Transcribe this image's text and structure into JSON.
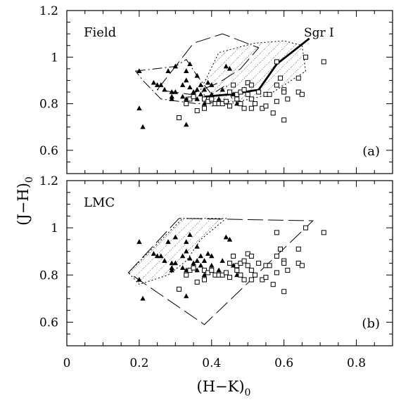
{
  "figure": {
    "ylabel": "(J−H)",
    "ylabel_sub": "0",
    "xlabel": "(H−K)",
    "xlabel_sub": "0"
  },
  "chart_data": [
    {
      "type": "scatter",
      "panel_label": "Field",
      "corner_label": "(a)",
      "xlim": [
        0,
        0.9
      ],
      "ylim": [
        0.5,
        1.2
      ],
      "xticks": [
        "0",
        "0.2",
        "0.4",
        "0.6",
        "0.8"
      ],
      "yticks": [
        "0.6",
        "0.8",
        "1",
        "1.2"
      ],
      "xtick_values": [
        0,
        0.2,
        0.4,
        0.6,
        0.8
      ],
      "ytick_values": [
        0.6,
        0.8,
        1.0,
        1.2
      ],
      "show_xticklabels": false,
      "series": [
        {
          "marker": "filled-triangle",
          "points": [
            [
              0.2,
              0.94
            ],
            [
              0.2,
              0.78
            ],
            [
              0.21,
              0.7
            ],
            [
              0.24,
              0.89
            ],
            [
              0.25,
              0.88
            ],
            [
              0.26,
              0.88
            ],
            [
              0.27,
              0.86
            ],
            [
              0.28,
              0.94
            ],
            [
              0.29,
              0.85
            ],
            [
              0.29,
              0.83
            ],
            [
              0.29,
              0.82
            ],
            [
              0.3,
              0.96
            ],
            [
              0.3,
              0.85
            ],
            [
              0.32,
              0.88
            ],
            [
              0.32,
              0.83
            ],
            [
              0.33,
              0.94
            ],
            [
              0.33,
              0.9
            ],
            [
              0.33,
              0.82
            ],
            [
              0.33,
              0.71
            ],
            [
              0.34,
              0.97
            ],
            [
              0.34,
              0.87
            ],
            [
              0.35,
              0.85
            ],
            [
              0.35,
              0.84
            ],
            [
              0.35,
              0.83
            ],
            [
              0.36,
              0.92
            ],
            [
              0.36,
              0.86
            ],
            [
              0.36,
              0.82
            ],
            [
              0.37,
              0.88
            ],
            [
              0.37,
              0.84
            ],
            [
              0.38,
              0.86
            ],
            [
              0.38,
              0.8
            ],
            [
              0.39,
              0.89
            ],
            [
              0.4,
              0.88
            ],
            [
              0.4,
              0.84
            ],
            [
              0.42,
              0.82
            ],
            [
              0.43,
              0.86
            ],
            [
              0.44,
              0.96
            ],
            [
              0.45,
              0.95
            ],
            [
              0.46,
              0.84
            ],
            [
              0.47,
              0.8
            ]
          ]
        },
        {
          "marker": "open-square",
          "points": [
            [
              0.31,
              0.74
            ],
            [
              0.33,
              0.8
            ],
            [
              0.34,
              0.82
            ],
            [
              0.35,
              0.83
            ],
            [
              0.36,
              0.77
            ],
            [
              0.38,
              0.78
            ],
            [
              0.38,
              0.82
            ],
            [
              0.39,
              0.81
            ],
            [
              0.4,
              0.82
            ],
            [
              0.41,
              0.8
            ],
            [
              0.42,
              0.8
            ],
            [
              0.43,
              0.8
            ],
            [
              0.44,
              0.81
            ],
            [
              0.45,
              0.85
            ],
            [
              0.45,
              0.79
            ],
            [
              0.46,
              0.88
            ],
            [
              0.47,
              0.84
            ],
            [
              0.47,
              0.82
            ],
            [
              0.48,
              0.85
            ],
            [
              0.48,
              0.8
            ],
            [
              0.49,
              0.78
            ],
            [
              0.49,
              0.86
            ],
            [
              0.5,
              0.89
            ],
            [
              0.5,
              0.84
            ],
            [
              0.51,
              0.88
            ],
            [
              0.51,
              0.82
            ],
            [
              0.51,
              0.78
            ],
            [
              0.52,
              0.8
            ],
            [
              0.53,
              0.85
            ],
            [
              0.54,
              0.78
            ],
            [
              0.55,
              0.84
            ],
            [
              0.55,
              0.79
            ],
            [
              0.56,
              0.84
            ],
            [
              0.57,
              0.76
            ],
            [
              0.58,
              0.88
            ],
            [
              0.58,
              0.81
            ],
            [
              0.58,
              0.98
            ],
            [
              0.59,
              0.91
            ],
            [
              0.6,
              0.86
            ],
            [
              0.6,
              0.85
            ],
            [
              0.6,
              0.73
            ],
            [
              0.61,
              0.82
            ],
            [
              0.64,
              0.91
            ],
            [
              0.64,
              0.85
            ],
            [
              0.65,
              0.84
            ],
            [
              0.66,
              1.0
            ],
            [
              0.71,
              0.98
            ]
          ]
        }
      ],
      "track": {
        "label": "Sgr I",
        "points": [
          [
            0.38,
            0.83
          ],
          [
            0.45,
            0.84
          ],
          [
            0.53,
            0.86
          ],
          [
            0.58,
            0.97
          ],
          [
            0.67,
            1.08
          ]
        ]
      },
      "regions": [
        {
          "style": "dash-dot",
          "points": [
            [
              0.19,
              0.94
            ],
            [
              0.3,
              0.96
            ],
            [
              0.33,
              0.99
            ],
            [
              0.36,
              0.92
            ],
            [
              0.4,
              0.84
            ],
            [
              0.44,
              0.88
            ],
            [
              0.46,
              0.81
            ],
            [
              0.36,
              0.8
            ],
            [
              0.26,
              0.82
            ],
            [
              0.21,
              0.9
            ],
            [
              0.19,
              0.94
            ]
          ]
        },
        {
          "style": "long-dash",
          "points": [
            [
              0.25,
              0.86
            ],
            [
              0.35,
              1.06
            ],
            [
              0.43,
              1.1
            ],
            [
              0.53,
              1.04
            ],
            [
              0.48,
              0.95
            ],
            [
              0.42,
              0.89
            ],
            [
              0.34,
              0.84
            ],
            [
              0.25,
              0.86
            ]
          ]
        },
        {
          "style": "dotted-hatched",
          "points": [
            [
              0.37,
              0.86
            ],
            [
              0.42,
              1.02
            ],
            [
              0.52,
              1.06
            ],
            [
              0.6,
              1.07
            ],
            [
              0.65,
              1.05
            ],
            [
              0.66,
              0.94
            ],
            [
              0.56,
              0.84
            ],
            [
              0.45,
              0.8
            ],
            [
              0.4,
              0.79
            ],
            [
              0.37,
              0.86
            ]
          ]
        }
      ]
    },
    {
      "type": "scatter",
      "panel_label": "LMC",
      "corner_label": "(b)",
      "xlim": [
        0,
        0.9
      ],
      "ylim": [
        0.5,
        1.2
      ],
      "xticks": [
        "0",
        "0.2",
        "0.4",
        "0.6",
        "0.8"
      ],
      "yticks": [
        "0.6",
        "0.8",
        "1",
        "1.2"
      ],
      "xtick_values": [
        0,
        0.2,
        0.4,
        0.6,
        0.8
      ],
      "ytick_values": [
        0.6,
        0.8,
        1.0,
        1.2
      ],
      "show_xticklabels": true,
      "series": [
        {
          "marker": "filled-triangle",
          "points": [
            [
              0.2,
              0.94
            ],
            [
              0.2,
              0.78
            ],
            [
              0.21,
              0.7
            ],
            [
              0.24,
              0.89
            ],
            [
              0.25,
              0.88
            ],
            [
              0.26,
              0.88
            ],
            [
              0.27,
              0.86
            ],
            [
              0.28,
              0.94
            ],
            [
              0.29,
              0.85
            ],
            [
              0.29,
              0.83
            ],
            [
              0.29,
              0.82
            ],
            [
              0.3,
              0.96
            ],
            [
              0.3,
              0.85
            ],
            [
              0.32,
              0.88
            ],
            [
              0.32,
              0.83
            ],
            [
              0.33,
              0.94
            ],
            [
              0.33,
              0.9
            ],
            [
              0.33,
              0.82
            ],
            [
              0.33,
              0.71
            ],
            [
              0.34,
              0.97
            ],
            [
              0.34,
              0.87
            ],
            [
              0.35,
              0.85
            ],
            [
              0.35,
              0.84
            ],
            [
              0.35,
              0.83
            ],
            [
              0.36,
              0.92
            ],
            [
              0.36,
              0.86
            ],
            [
              0.36,
              0.82
            ],
            [
              0.37,
              0.88
            ],
            [
              0.37,
              0.84
            ],
            [
              0.38,
              0.86
            ],
            [
              0.38,
              0.8
            ],
            [
              0.39,
              0.89
            ],
            [
              0.4,
              0.88
            ],
            [
              0.4,
              0.84
            ],
            [
              0.42,
              0.82
            ],
            [
              0.43,
              0.86
            ],
            [
              0.44,
              0.96
            ],
            [
              0.45,
              0.95
            ],
            [
              0.46,
              0.84
            ],
            [
              0.47,
              0.8
            ]
          ]
        },
        {
          "marker": "open-square",
          "points": [
            [
              0.31,
              0.74
            ],
            [
              0.33,
              0.8
            ],
            [
              0.34,
              0.82
            ],
            [
              0.35,
              0.83
            ],
            [
              0.36,
              0.77
            ],
            [
              0.38,
              0.78
            ],
            [
              0.38,
              0.82
            ],
            [
              0.39,
              0.81
            ],
            [
              0.4,
              0.82
            ],
            [
              0.41,
              0.8
            ],
            [
              0.42,
              0.8
            ],
            [
              0.43,
              0.8
            ],
            [
              0.44,
              0.81
            ],
            [
              0.45,
              0.85
            ],
            [
              0.45,
              0.79
            ],
            [
              0.46,
              0.88
            ],
            [
              0.47,
              0.84
            ],
            [
              0.47,
              0.82
            ],
            [
              0.48,
              0.85
            ],
            [
              0.48,
              0.8
            ],
            [
              0.49,
              0.78
            ],
            [
              0.49,
              0.86
            ],
            [
              0.5,
              0.89
            ],
            [
              0.5,
              0.84
            ],
            [
              0.51,
              0.88
            ],
            [
              0.51,
              0.82
            ],
            [
              0.51,
              0.78
            ],
            [
              0.52,
              0.8
            ],
            [
              0.53,
              0.85
            ],
            [
              0.54,
              0.78
            ],
            [
              0.55,
              0.84
            ],
            [
              0.55,
              0.79
            ],
            [
              0.56,
              0.84
            ],
            [
              0.57,
              0.76
            ],
            [
              0.58,
              0.88
            ],
            [
              0.58,
              0.81
            ],
            [
              0.58,
              0.98
            ],
            [
              0.59,
              0.91
            ],
            [
              0.6,
              0.86
            ],
            [
              0.6,
              0.85
            ],
            [
              0.6,
              0.73
            ],
            [
              0.61,
              0.82
            ],
            [
              0.64,
              0.91
            ],
            [
              0.64,
              0.85
            ],
            [
              0.65,
              0.84
            ],
            [
              0.66,
              1.0
            ],
            [
              0.71,
              0.98
            ]
          ]
        }
      ],
      "track": null,
      "regions": [
        {
          "style": "dotted-hatched",
          "points": [
            [
              0.17,
              0.81
            ],
            [
              0.32,
              1.04
            ],
            [
              0.44,
              1.04
            ],
            [
              0.37,
              0.95
            ],
            [
              0.33,
              0.86
            ],
            [
              0.28,
              0.8
            ],
            [
              0.2,
              0.76
            ],
            [
              0.17,
              0.81
            ]
          ]
        },
        {
          "style": "long-dash",
          "points": [
            [
              0.17,
              0.81
            ],
            [
              0.31,
              1.04
            ],
            [
              0.68,
              1.03
            ],
            [
              0.38,
              0.59
            ],
            [
              0.17,
              0.81
            ]
          ]
        }
      ]
    }
  ]
}
